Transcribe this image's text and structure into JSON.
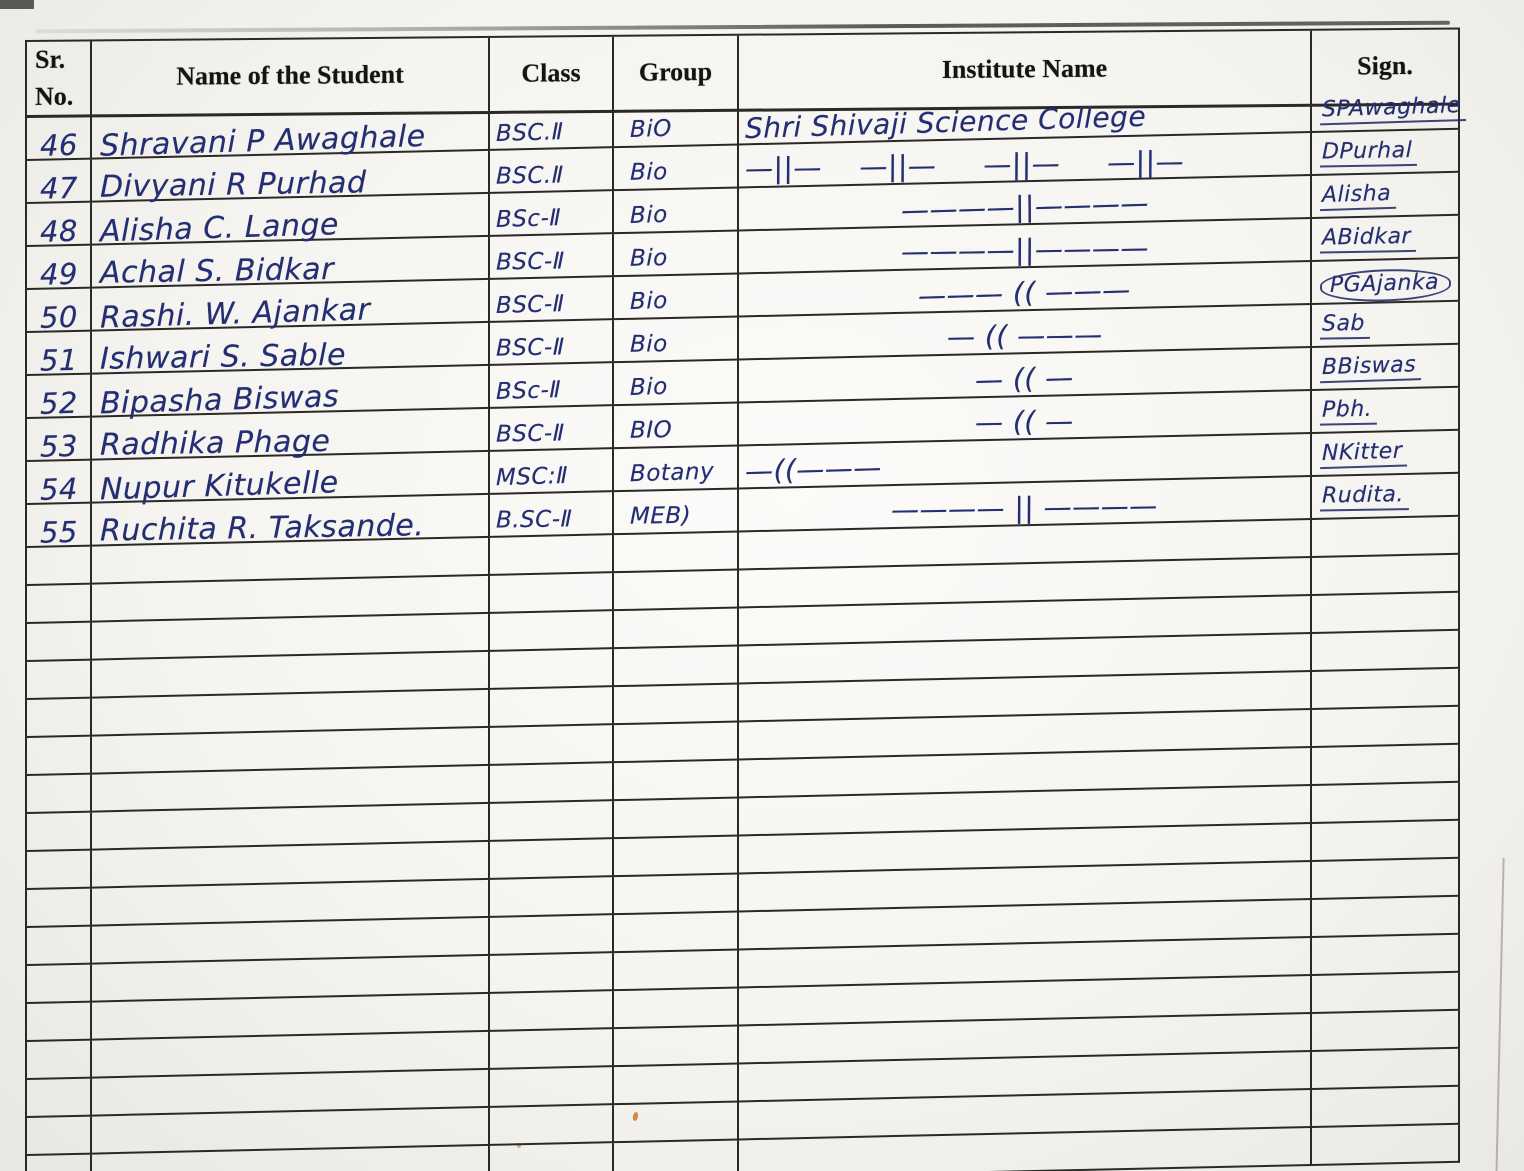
{
  "colors": {
    "paper": "#f4f3ef",
    "ink": "#232e73",
    "grid_line": "#2b2926",
    "accent_fleck": "#c9701f"
  },
  "header": {
    "sr_line1": "Sr.",
    "sr_line2": "No.",
    "name": "Name of the Student",
    "class": "Class",
    "group": "Group",
    "institute": "Institute Name",
    "sign": "Sign."
  },
  "rows": [
    {
      "sr": "46",
      "name": "Shravani P Awaghale",
      "class": "BSC.Ⅱ",
      "group": "BiO",
      "institute": "Shri Shivaji Science College",
      "institute_align": "left",
      "sign": "SPAwaghale"
    },
    {
      "sr": "47",
      "name": "Divyani R Purhad",
      "class": "BSC.Ⅱ",
      "group": "Bio",
      "institute": "—||—    —||—     —||—     —||—",
      "institute_align": "left",
      "sign": "DPurhal"
    },
    {
      "sr": "48",
      "name": "Alisha C. Lange",
      "class": "BSc-Ⅱ",
      "group": "Bio",
      "institute": "————||————",
      "institute_align": "center",
      "sign": "Alisha"
    },
    {
      "sr": "49",
      "name": "Achal S. Bidkar",
      "class": "BSC-Ⅱ",
      "group": "Bio",
      "institute": "————||————",
      "institute_align": "center",
      "sign": "ABidkar"
    },
    {
      "sr": "50",
      "name": "Rashi. W. Ajankar",
      "class": "BSC-Ⅱ",
      "group": "Bio",
      "institute": "——— (( ———",
      "institute_align": "center",
      "sign": "PGAjanka",
      "sign_style": "circled"
    },
    {
      "sr": "51",
      "name": "Ishwari S. Sable",
      "class": "BSC-Ⅱ",
      "group": "Bio",
      "institute": "— (( ———",
      "institute_align": "center",
      "sign": "Sab"
    },
    {
      "sr": "52",
      "name": "Bipasha Biswas",
      "class": "BSc-Ⅱ",
      "group": "Bio",
      "institute": "— (( —",
      "institute_align": "center",
      "sign": "BBiswas"
    },
    {
      "sr": "53",
      "name": "Radhika Phage",
      "class": "BSC-Ⅱ",
      "group": "BIO",
      "institute": "— (( —",
      "institute_align": "center",
      "sign": "Pbh."
    },
    {
      "sr": "54",
      "name": "Nupur Kitukelle",
      "class": "MSC:Ⅱ",
      "group": "Botany",
      "institute": "—((———",
      "institute_align": "left",
      "sign": "NKitter"
    },
    {
      "sr": "55",
      "name": "Ruchita R. Taksande.",
      "class": "B.SC-Ⅱ",
      "group": "MEB)",
      "institute": "———— || ————",
      "institute_align": "center",
      "sign": "Rudita."
    }
  ],
  "empty_row_count": 17
}
